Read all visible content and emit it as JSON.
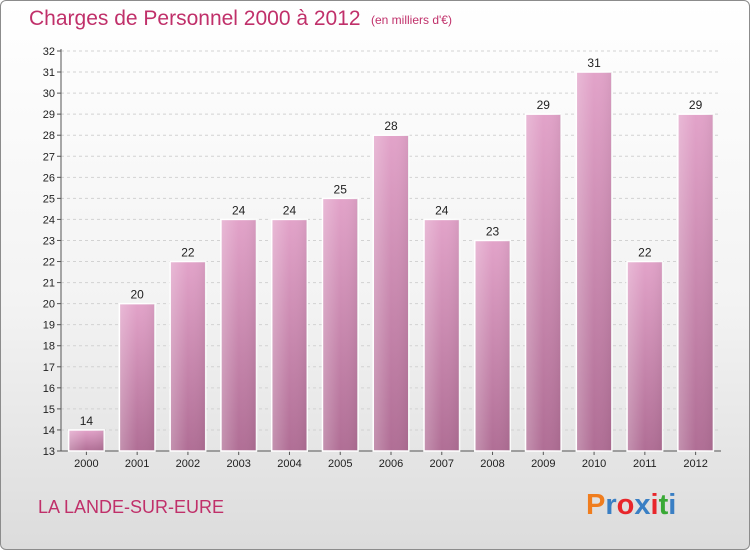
{
  "header": {
    "title": "Charges de Personnel 2000 à 2012",
    "subtitle": "(en milliers d'€)"
  },
  "footer": {
    "commune": "LA LANDE-SUR-EURE",
    "logo": "Proxiti",
    "logo_colors": [
      "#f07d1e",
      "#3a7fc4",
      "#e8262b",
      "#3a7fc4",
      "#e8262b",
      "#39a935",
      "#3a7fc4"
    ]
  },
  "chart_data": {
    "type": "bar",
    "title": "Charges de Personnel 2000 à 2012",
    "subtitle": "(en milliers d'€)",
    "xlabel": "",
    "ylabel": "",
    "categories": [
      "2000",
      "2001",
      "2002",
      "2003",
      "2004",
      "2005",
      "2006",
      "2007",
      "2008",
      "2009",
      "2010",
      "2011",
      "2012"
    ],
    "values": [
      14,
      20,
      22,
      24,
      24,
      25,
      28,
      24,
      23,
      29,
      31,
      22,
      29
    ],
    "ylim": [
      13,
      32
    ],
    "yticks": [
      13,
      14,
      15,
      16,
      17,
      18,
      19,
      20,
      21,
      22,
      23,
      24,
      25,
      26,
      27,
      28,
      29,
      30,
      31,
      32
    ],
    "grid": true,
    "bar_color_top": "#e2a3c9",
    "bar_color_bottom": "#b06e95"
  }
}
